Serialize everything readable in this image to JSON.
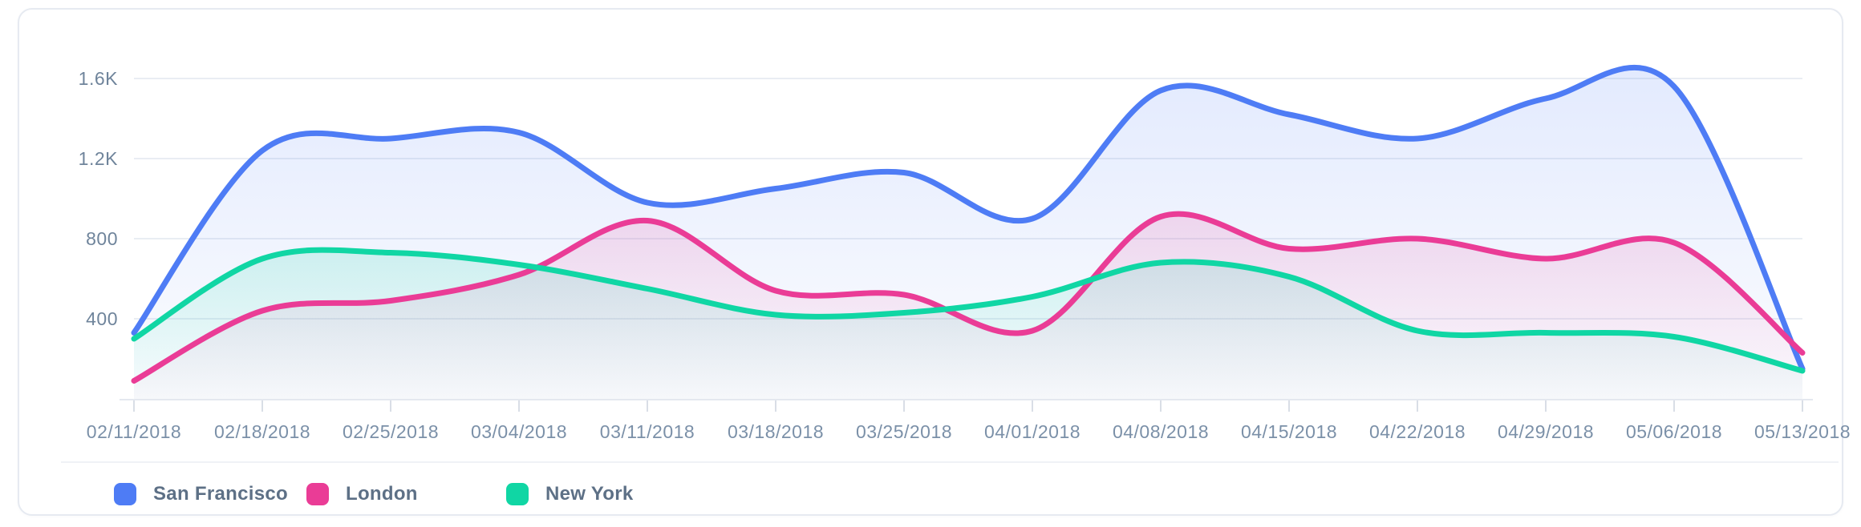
{
  "chart_data": {
    "type": "area",
    "title": "",
    "xlabel": "",
    "ylabel": "",
    "x_labels": [
      "02/11/2018",
      "02/18/2018",
      "02/25/2018",
      "03/04/2018",
      "03/11/2018",
      "03/18/2018",
      "03/25/2018",
      "04/01/2018",
      "04/08/2018",
      "04/15/2018",
      "04/22/2018",
      "04/29/2018",
      "05/06/2018",
      "05/13/2018"
    ],
    "y_ticks": [
      {
        "label": "400",
        "value": 400
      },
      {
        "label": "800",
        "value": 800
      },
      {
        "label": "1.2K",
        "value": 1200
      },
      {
        "label": "1.6K",
        "value": 1600
      }
    ],
    "ylim": [
      0,
      1700
    ],
    "grid": "horizontal-only",
    "legend_position": "bottom-left",
    "curve_style": "smooth-spline",
    "series": [
      {
        "name": "San Francisco",
        "color": "#4e7cf5",
        "values": [
          330,
          1240,
          1300,
          1330,
          980,
          1050,
          1130,
          900,
          1540,
          1420,
          1300,
          1500,
          1560,
          150
        ]
      },
      {
        "name": "London",
        "color": "#ea3c96",
        "values": [
          90,
          440,
          490,
          620,
          890,
          540,
          520,
          340,
          910,
          750,
          800,
          700,
          780,
          230
        ]
      },
      {
        "name": "New York",
        "color": "#10d6a4",
        "values": [
          300,
          700,
          730,
          670,
          550,
          420,
          430,
          510,
          680,
          610,
          340,
          330,
          310,
          140
        ]
      }
    ]
  },
  "colors": {
    "grid": "#e9edf3",
    "axis_line": "#e4e8ef",
    "tick": "#d9dee6",
    "x_label_text": "#7b90a8",
    "y_label_text": "#6f849b",
    "legend_text": "#5d7086",
    "card_border": "#e6eaf1",
    "card_background": "#ffffff"
  }
}
